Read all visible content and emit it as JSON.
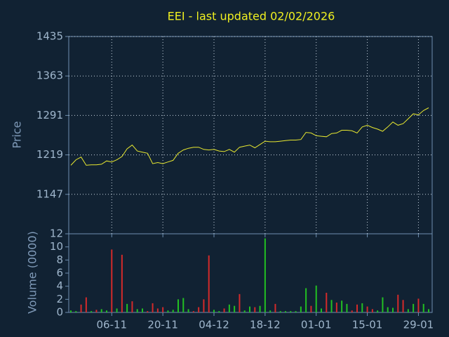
{
  "chart_data": {
    "type": "line",
    "title": "EEI - last updated 02/02/2026",
    "ylabel": "Price",
    "y2label": "Volume (0000)",
    "color": "#e8e830",
    "grid": true,
    "categories": [
      "27-10",
      "28-10",
      "29-10",
      "30-10",
      "31-10",
      "03-11",
      "04-11",
      "05-11",
      "06-11",
      "07-11",
      "10-11",
      "11-11",
      "12-11",
      "13-11",
      "14-11",
      "17-11",
      "18-11",
      "19-11",
      "20-11",
      "21-11",
      "24-11",
      "25-11",
      "26-11",
      "27-11",
      "28-11",
      "01-12",
      "02-12",
      "03-12",
      "04-12",
      "05-12",
      "08-12",
      "09-12",
      "10-12",
      "11-12",
      "12-12",
      "15-12",
      "16-12",
      "17-12",
      "18-12",
      "19-12",
      "22-12",
      "23-12",
      "24-12",
      "25-12",
      "26-12",
      "29-12",
      "30-12",
      "31-12",
      "01-01",
      "02-01",
      "05-01",
      "06-01",
      "07-01",
      "08-01",
      "09-01",
      "12-01",
      "13-01",
      "14-01",
      "15-01",
      "16-01",
      "19-01",
      "20-01",
      "21-01",
      "22-01",
      "23-01",
      "26-01",
      "27-01",
      "28-01",
      "29-01",
      "30-01",
      "02-02"
    ],
    "values": [
      1200,
      1210,
      1215,
      1200,
      1201,
      1201,
      1202,
      1208,
      1206,
      1210,
      1216,
      1230,
      1237,
      1226,
      1224,
      1222,
      1203,
      1205,
      1203,
      1206,
      1209,
      1222,
      1228,
      1231,
      1233,
      1233,
      1229,
      1228,
      1229,
      1226,
      1225,
      1229,
      1224,
      1233,
      1235,
      1237,
      1232,
      1238,
      1244,
      1243,
      1243,
      1244,
      1245,
      1246,
      1246,
      1247,
      1260,
      1259,
      1254,
      1253,
      1252,
      1258,
      1259,
      1264,
      1264,
      1263,
      1259,
      1270,
      1273,
      1269,
      1266,
      1262,
      1270,
      1279,
      1273,
      1276,
      1285,
      1294,
      1292,
      1300,
      1305
    ],
    "xticks": [
      "06-11",
      "20-11",
      "04-12",
      "18-12",
      "01-01",
      "15-01",
      "29-01"
    ],
    "ylim": [
      1075,
      1435
    ],
    "yticks": [
      1147,
      1219,
      1291,
      1363,
      1435
    ],
    "volume": {
      "type": "bar",
      "values": [
        0.3,
        0.2,
        1.2,
        2.3,
        0.2,
        0.4,
        0.5,
        0.3,
        9.6,
        0.6,
        8.8,
        1.3,
        1.7,
        0.5,
        0.6,
        0.2,
        1.4,
        0.6,
        0.8,
        0.3,
        0.4,
        2.0,
        2.2,
        0.5,
        0.2,
        0.8,
        2.0,
        8.7,
        0.4,
        0.2,
        0.6,
        1.2,
        1.0,
        2.8,
        0.3,
        0.9,
        0.8,
        1.0,
        11.3,
        0.3,
        1.3,
        0.2,
        0.2,
        0.2,
        0.2,
        0.9,
        3.7,
        1.0,
        4.1,
        0.6,
        3.0,
        1.9,
        1.5,
        1.8,
        1.3,
        0.3,
        1.2,
        1.4,
        0.9,
        0.5,
        0.3,
        2.3,
        0.8,
        0.7,
        2.7,
        1.9,
        0.5,
        1.3,
        2.1,
        1.3,
        0.5
      ],
      "colors": [
        "#22c022",
        "#22c022",
        "#d42a2a",
        "#d42a2a",
        "#22c022",
        "#d42a2a",
        "#22c022",
        "#22c022",
        "#d42a2a",
        "#22c022",
        "#d42a2a",
        "#22c022",
        "#d42a2a",
        "#22c022",
        "#22c022",
        "#d42a2a",
        "#d42a2a",
        "#d42a2a",
        "#d42a2a",
        "#22c022",
        "#22c022",
        "#22c022",
        "#22c022",
        "#22c022",
        "#d42a2a",
        "#d42a2a",
        "#d42a2a",
        "#d42a2a",
        "#22c022",
        "#22c022",
        "#d42a2a",
        "#22c022",
        "#22c022",
        "#d42a2a",
        "#22c022",
        "#22c022",
        "#d42a2a",
        "#22c022",
        "#22c022",
        "#22c022",
        "#d42a2a",
        "#22c022",
        "#22c022",
        "#22c022",
        "#22c022",
        "#22c022",
        "#22c022",
        "#d42a2a",
        "#22c022",
        "#22c022",
        "#d42a2a",
        "#22c022",
        "#d42a2a",
        "#22c022",
        "#22c022",
        "#d42a2a",
        "#d42a2a",
        "#22c022",
        "#d42a2a",
        "#d42a2a",
        "#22c022",
        "#22c022",
        "#22c022",
        "#22c022",
        "#d42a2a",
        "#d42a2a",
        "#22c022",
        "#22c022",
        "#d42a2a",
        "#22c022",
        "#22c022"
      ],
      "ylim": [
        0,
        12
      ],
      "yticks": [
        0,
        2,
        4,
        6,
        8,
        10,
        12
      ]
    }
  }
}
